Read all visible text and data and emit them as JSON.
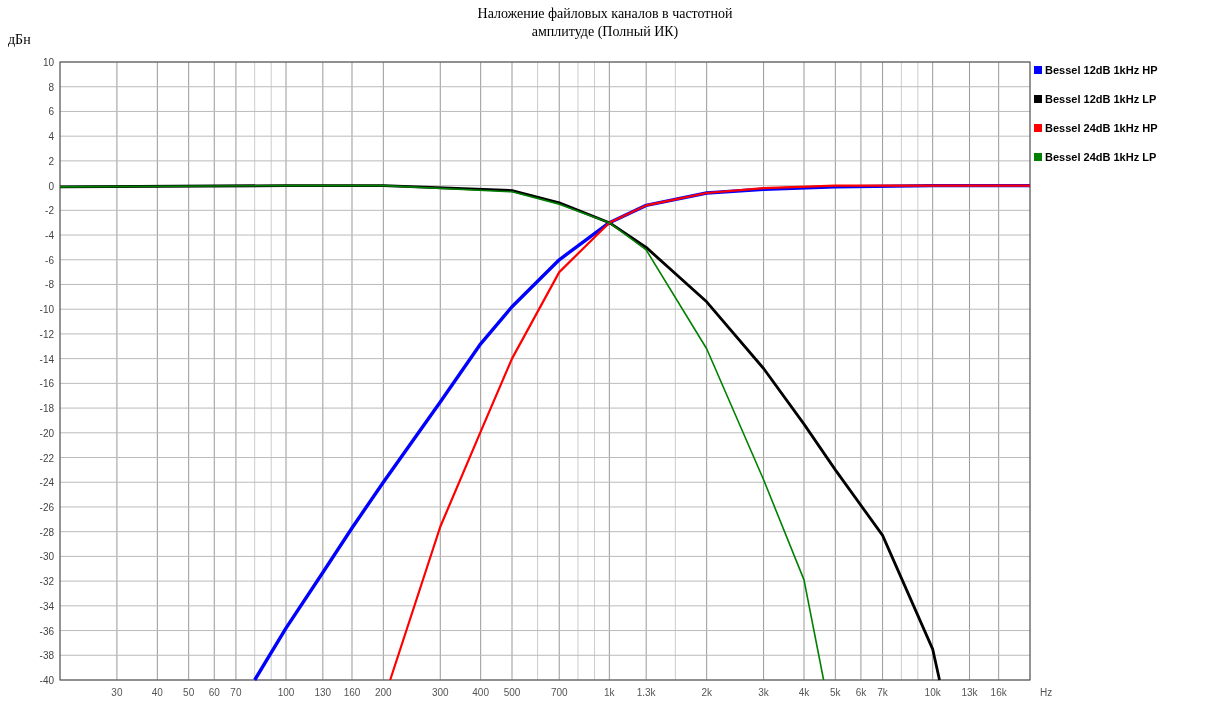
{
  "chart_data": {
    "type": "line",
    "title": "Наложение файловых каналов в частотной\nамплитуде (Полный ИК)",
    "ylabel": "дБн",
    "xlabel": "Hz",
    "log": "x",
    "grid": true,
    "legend": "right",
    "line_style": "solid",
    "marker": "none",
    "xlim": [
      20,
      20000
    ],
    "ylim": [
      -40,
      10
    ],
    "xticks": [
      {
        "value": 20,
        "label": null
      },
      30,
      40,
      50,
      60,
      70,
      {
        "value": 80,
        "label": null
      },
      {
        "value": 90,
        "label": null
      },
      100,
      130,
      160,
      200,
      300,
      400,
      500,
      {
        "value": 600,
        "label": null
      },
      700,
      {
        "value": 800,
        "label": null
      },
      {
        "value": 900,
        "label": null
      },
      {
        "value": 1000,
        "label": "1k"
      },
      {
        "value": 1300,
        "label": "1.3k"
      },
      {
        "value": 1600,
        "label": null
      },
      {
        "value": 2000,
        "label": "2k"
      },
      {
        "value": 3000,
        "label": "3k"
      },
      {
        "value": 4000,
        "label": "4k"
      },
      {
        "value": 5000,
        "label": "5k"
      },
      {
        "value": 6000,
        "label": "6k"
      },
      {
        "value": 7000,
        "label": "7k"
      },
      {
        "value": 8000,
        "label": null
      },
      {
        "value": 9000,
        "label": null
      },
      {
        "value": 10000,
        "label": "10k"
      },
      {
        "value": 13000,
        "label": "13k"
      },
      {
        "value": 16000,
        "label": "16k"
      },
      {
        "value": 20000,
        "label": null
      }
    ],
    "yticks": [
      10,
      8,
      6,
      4,
      2,
      0,
      -2,
      -4,
      -6,
      -8,
      -10,
      -12,
      -14,
      -16,
      -18,
      -20,
      -22,
      -24,
      -26,
      -28,
      -30,
      -32,
      -34,
      -36,
      -38,
      -40
    ],
    "series": [
      {
        "name": "Bessel 12dB 1kHz HP",
        "color": "#0000ff",
        "x": [
          80,
          100,
          130,
          160,
          200,
          300,
          400,
          500,
          700,
          1000,
          1300,
          2000,
          3000,
          5000,
          10000,
          20000
        ],
        "values": [
          -40,
          -35.8,
          -31.3,
          -27.7,
          -24,
          -17.5,
          -12.8,
          -9.8,
          -6,
          -3,
          -1.6,
          -0.6,
          -0.3,
          -0.1,
          0,
          0
        ]
      },
      {
        "name": "Bessel 12dB 1kHz LP",
        "color": "#000000",
        "x": [
          20,
          100,
          200,
          500,
          700,
          1000,
          1300,
          2000,
          3000,
          4000,
          5000,
          7000,
          10000,
          10500
        ],
        "values": [
          -0.1,
          0,
          0,
          -0.4,
          -1.4,
          -3,
          -5,
          -9.4,
          -14.8,
          -19.3,
          -23,
          -28.3,
          -37.5,
          -40
        ]
      },
      {
        "name": "Bessel 24dB 1kHz HP",
        "color": "#ff0000",
        "x": [
          210,
          300,
          400,
          500,
          700,
          1000,
          1300,
          2000,
          3000,
          5000,
          10000,
          20000
        ],
        "values": [
          -40,
          -27.6,
          -19.9,
          -14,
          -7,
          -3,
          -1.6,
          -0.6,
          -0.2,
          0,
          0,
          0
        ]
      },
      {
        "name": "Bessel 24dB 1kHz LP",
        "color": "#008000",
        "x": [
          20,
          100,
          200,
          500,
          700,
          1000,
          1300,
          2000,
          3000,
          4000,
          4600
        ],
        "values": [
          -0.1,
          0,
          0,
          -0.5,
          -1.5,
          -3,
          -5.2,
          -13.2,
          -23.8,
          -31.9,
          -40
        ]
      }
    ]
  }
}
